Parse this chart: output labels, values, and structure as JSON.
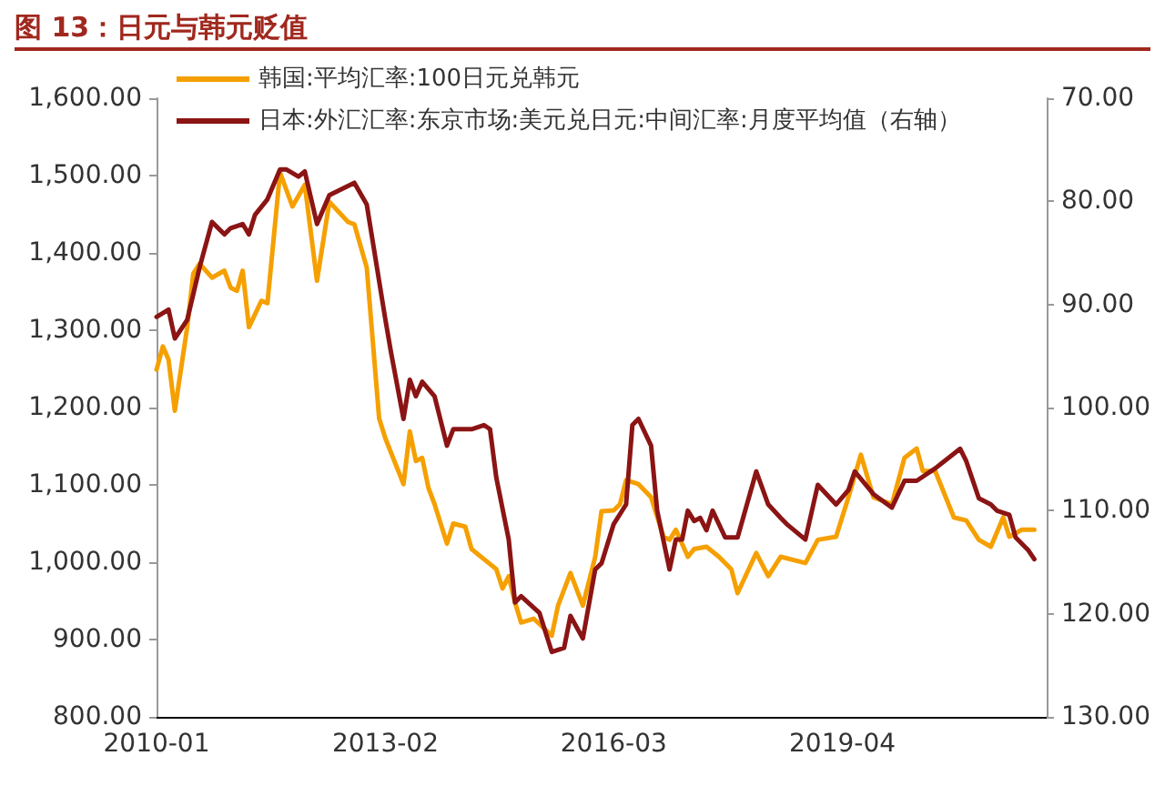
{
  "chart_data": {
    "type": "line",
    "title": "图 13：日元与韩元贬值",
    "legend": "top left",
    "marker": "none",
    "line_style": "solid",
    "grid": false,
    "xlim": [
      "2010-01",
      "2022-01"
    ],
    "xticks": [
      "2010-01",
      "2013-02",
      "2016-03",
      "2019-04"
    ],
    "ylim": [
      800,
      1600
    ],
    "yticks": [
      {
        "value": 800,
        "label": "800.00"
      },
      {
        "value": 900,
        "label": "900.00"
      },
      {
        "value": 1000,
        "label": "1,000.00"
      },
      {
        "value": 1100,
        "label": "1,100.00"
      },
      {
        "value": 1200,
        "label": "1,200.00"
      },
      {
        "value": 1300,
        "label": "1,300.00"
      },
      {
        "value": 1400,
        "label": "1,400.00"
      },
      {
        "value": 1500,
        "label": "1,500.00"
      },
      {
        "value": 1600,
        "label": "1,600.00"
      }
    ],
    "y2lim": [
      130,
      70
    ],
    "y2ticks": [
      {
        "value": 70,
        "label": "70.00"
      },
      {
        "value": 80,
        "label": "80.00"
      },
      {
        "value": 90,
        "label": "90.00"
      },
      {
        "value": 100,
        "label": "100.00"
      },
      {
        "value": 110,
        "label": "110.00"
      },
      {
        "value": 120,
        "label": "120.00"
      },
      {
        "value": 130,
        "label": "130.00"
      }
    ],
    "series": [
      {
        "name": "韩国:平均汇率:100日元兑韩元",
        "color": "#f5a000",
        "x": [
          "2010-01",
          "2010-02",
          "2010-03",
          "2010-04",
          "2010-06",
          "2010-07",
          "2010-08",
          "2010-10",
          "2010-12",
          "2011-01",
          "2011-02",
          "2011-03",
          "2011-04",
          "2011-06",
          "2011-07",
          "2011-09",
          "2011-11",
          "2012-01",
          "2012-03",
          "2012-05",
          "2012-08",
          "2012-09",
          "2012-11",
          "2013-01",
          "2013-02",
          "2013-05",
          "2013-06",
          "2013-07",
          "2013-08",
          "2013-09",
          "2013-10",
          "2013-12",
          "2014-01",
          "2014-03",
          "2014-04",
          "2014-06",
          "2014-08",
          "2014-09",
          "2014-10",
          "2014-11",
          "2014-12",
          "2015-02",
          "2015-05",
          "2015-06",
          "2015-08",
          "2015-10",
          "2015-12",
          "2016-01",
          "2016-03",
          "2016-04",
          "2016-05",
          "2016-07",
          "2016-09",
          "2016-11",
          "2016-12",
          "2017-01",
          "2017-03",
          "2017-04",
          "2017-06",
          "2017-08",
          "2017-10",
          "2017-11",
          "2018-02",
          "2018-04",
          "2018-06",
          "2018-10",
          "2018-12",
          "2019-03",
          "2019-05",
          "2019-07",
          "2019-09",
          "2019-12",
          "2020-02",
          "2020-04",
          "2020-05",
          "2020-07",
          "2020-10",
          "2020-12",
          "2021-02",
          "2021-04",
          "2021-06",
          "2021-07",
          "2021-09",
          "2021-11"
        ],
        "values": [
          1249,
          1279,
          1262,
          1196,
          1304,
          1373,
          1386,
          1368,
          1377,
          1355,
          1351,
          1377,
          1304,
          1338,
          1335,
          1504,
          1460,
          1488,
          1364,
          1466,
          1440,
          1437,
          1381,
          1186,
          1160,
          1101,
          1169,
          1131,
          1135,
          1096,
          1075,
          1024,
          1050,
          1046,
          1017,
          1004,
          991,
          966,
          982,
          948,
          922,
          927,
          905,
          944,
          986,
          944,
          1007,
          1066,
          1067,
          1075,
          1106,
          1101,
          1084,
          1033,
          1029,
          1042,
          1007,
          1017,
          1020,
          1007,
          991,
          960,
          1012,
          982,
          1007,
          999,
          1029,
          1033,
          1084,
          1139,
          1084,
          1075,
          1135,
          1147,
          1118,
          1118,
          1058,
          1054,
          1029,
          1020,
          1058,
          1033,
          1042,
          1042
        ]
      },
      {
        "name": "日本:外汇汇率:东京市场:美元兑日元:中间汇率:月度平均值（右轴）",
        "color": "#8b1414",
        "axis": "y2",
        "x": [
          "2010-01",
          "2010-03",
          "2010-04",
          "2010-06",
          "2010-08",
          "2010-10",
          "2010-12",
          "2011-01",
          "2011-03",
          "2011-04",
          "2011-05",
          "2011-07",
          "2011-09",
          "2011-10",
          "2011-12",
          "2012-01",
          "2012-03",
          "2012-05",
          "2012-09",
          "2012-11",
          "2013-02",
          "2013-03",
          "2013-05",
          "2013-06",
          "2013-07",
          "2013-08",
          "2013-10",
          "2013-12",
          "2014-01",
          "2014-04",
          "2014-06",
          "2014-07",
          "2014-08",
          "2014-10",
          "2014-11",
          "2014-12",
          "2015-03",
          "2015-05",
          "2015-07",
          "2015-08",
          "2015-10",
          "2015-12",
          "2016-01",
          "2016-03",
          "2016-05",
          "2016-06",
          "2016-07",
          "2016-09",
          "2016-10",
          "2016-12",
          "2017-01",
          "2017-02",
          "2017-03",
          "2017-04",
          "2017-05",
          "2017-06",
          "2017-07",
          "2017-09",
          "2017-11",
          "2018-02",
          "2018-04",
          "2018-06",
          "2018-07",
          "2018-10",
          "2018-12",
          "2019-03",
          "2019-05",
          "2019-06",
          "2019-09",
          "2019-12",
          "2020-02",
          "2020-04",
          "2020-07",
          "2020-11",
          "2020-12",
          "2021-02",
          "2021-04",
          "2021-05",
          "2021-07",
          "2021-08",
          "2021-10",
          "2021-11"
        ],
        "values": [
          91.2,
          90.5,
          93.3,
          91.5,
          86.4,
          82.0,
          83.2,
          82.6,
          82.2,
          83.2,
          81.3,
          79.8,
          76.9,
          76.9,
          77.6,
          77.1,
          82.2,
          79.4,
          78.2,
          80.3,
          91.5,
          94.7,
          101.1,
          97.3,
          98.9,
          97.5,
          98.9,
          103.7,
          102.1,
          102.1,
          101.7,
          102.1,
          106.8,
          112.8,
          118.9,
          118.3,
          119.9,
          123.7,
          123.3,
          120.2,
          122.4,
          115.7,
          115.1,
          111.3,
          109.4,
          101.7,
          101.1,
          103.7,
          110.0,
          115.7,
          112.8,
          112.8,
          110.0,
          111.0,
          110.7,
          111.9,
          110.0,
          112.6,
          112.6,
          106.2,
          109.4,
          110.7,
          111.3,
          112.8,
          107.5,
          109.4,
          108.0,
          106.2,
          108.4,
          109.7,
          107.1,
          107.1,
          105.9,
          104.0,
          105.2,
          108.8,
          109.4,
          110.0,
          110.4,
          112.6,
          113.8,
          114.7
        ]
      }
    ]
  }
}
